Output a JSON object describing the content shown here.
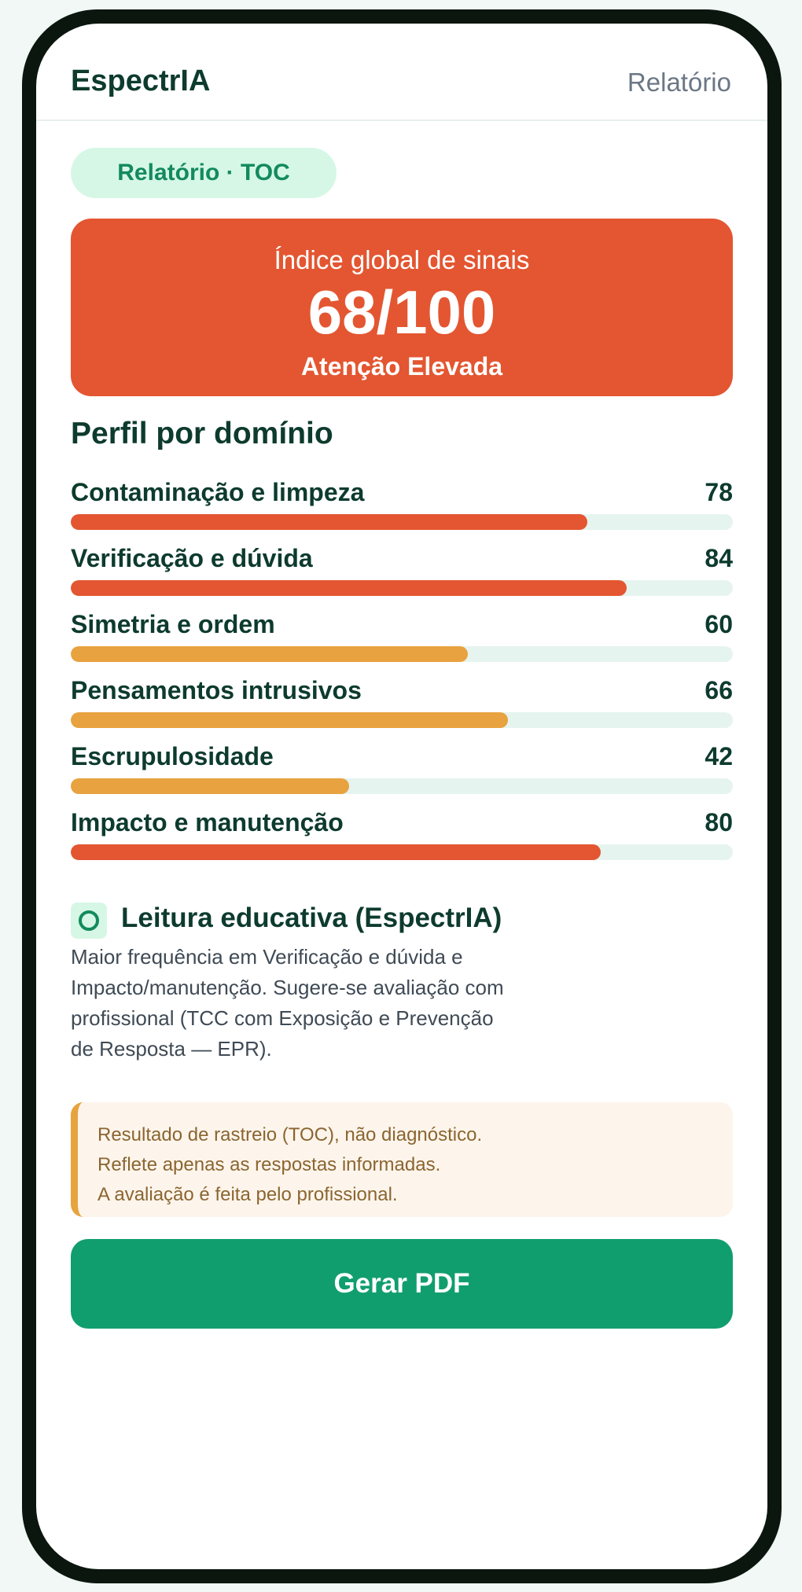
{
  "header": {
    "brand": "EspectrIA",
    "link": "Relatório"
  },
  "badge": "Relatório · TOC",
  "score_card": {
    "label": "Índice global de sinais",
    "value": "68/100",
    "level": "Atenção Elevada",
    "color": "#e35631"
  },
  "profile": {
    "title": "Perfil por domínio",
    "domains": [
      {
        "name": "Contaminação e limpeza",
        "score": 78,
        "color": "#e35631"
      },
      {
        "name": "Verificação e dúvida",
        "score": 84,
        "color": "#e35631"
      },
      {
        "name": "Simetria e ordem",
        "score": 60,
        "color": "#e8a23f"
      },
      {
        "name": "Pensamentos intrusivos",
        "score": 66,
        "color": "#e8a23f"
      },
      {
        "name": "Escrupulosidade",
        "score": 42,
        "color": "#e8a23f"
      },
      {
        "name": "Impacto e manutenção",
        "score": 80,
        "color": "#e35631"
      }
    ]
  },
  "education": {
    "icon": "ring-icon",
    "title": "Leitura educativa (EspectrIA)",
    "lines": [
      "Maior frequência em Verificação e dúvida e",
      "Impacto/manutenção. Sugere-se avaliação com",
      "profissional (TCC com Exposição e Prevenção",
      "de Resposta — EPR)."
    ]
  },
  "disclaimer": {
    "lines": [
      "Resultado de rastreio (TOC), não diagnóstico.",
      "Reflete apenas as respostas informadas.",
      "A avaliação é feita pelo profissional."
    ]
  },
  "actions": {
    "pdf_label": "Gerar PDF"
  },
  "colors": {
    "brand": "#0d3b2e",
    "accent": "#119e6e",
    "alert": "#e35631",
    "warning": "#e8a23f"
  }
}
